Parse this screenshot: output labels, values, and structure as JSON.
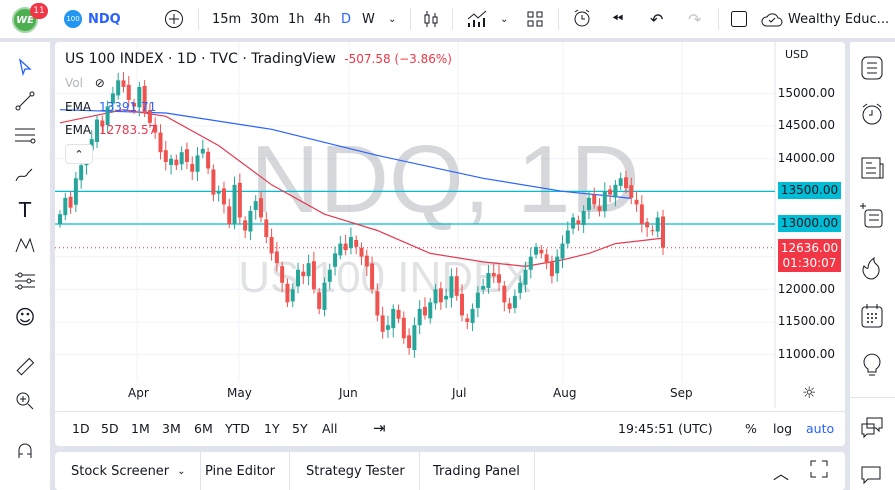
{
  "topbar": {
    "notification_count": "11",
    "symbol_badge": "100",
    "symbol": "NDQ",
    "intervals": [
      "15m",
      "30m",
      "1h",
      "4h",
      "D",
      "W"
    ],
    "active_interval": "D",
    "account": "Wealthy Educ..."
  },
  "legend": {
    "title": "US 100 INDEX · 1D · TVC · TradingView",
    "change": "-507.58 (−3.86%)",
    "vol_label": "Vol",
    "ema1_label": "EMA",
    "ema1_value": "13391.71",
    "ema2_label": "EMA",
    "ema2_value": "12783.57"
  },
  "watermark": {
    "symbol": "NDQ, 1D",
    "name": "US 100 INDEX"
  },
  "price_axis": {
    "currency": "USD",
    "ticks": [
      "15000.00",
      "14500.00",
      "14000.00",
      "12000.00",
      "11500.00",
      "11000.00"
    ],
    "levels": [
      "13500.00",
      "13000.00"
    ],
    "last_price": "12636.00",
    "countdown": "01:30:07"
  },
  "time_axis": {
    "months": [
      "Apr",
      "May",
      "Jun",
      "Jul",
      "Aug",
      "Sep"
    ]
  },
  "bottom_toolbar": {
    "periods": [
      "1D",
      "5D",
      "1M",
      "3M",
      "6M",
      "YTD",
      "1Y",
      "5Y",
      "All"
    ],
    "clock": "19:45:51 (UTC)",
    "percent": "%",
    "log": "log",
    "auto": "auto"
  },
  "bottom_panel": {
    "tabs": [
      "Stock Screener",
      "Pine Editor",
      "Strategy Tester",
      "Trading Panel"
    ]
  },
  "colors": {
    "up": "#26a69a",
    "down": "#ef5350",
    "ema_long": "#2962ff",
    "ema_short": "#e53950",
    "level_line": "#00bcd4",
    "accent": "#2962ff",
    "last_price_bg": "#f23645"
  },
  "chart_data": {
    "type": "candlestick",
    "horizontal_levels": [
      13500,
      13000
    ],
    "y_range": [
      10700,
      15600
    ],
    "closes": [
      13150,
      13400,
      13250,
      13700,
      13900,
      14100,
      14300,
      14600,
      14500,
      14800,
      15000,
      15200,
      15100,
      14900,
      14800,
      15100,
      14700,
      14550,
      14400,
      14100,
      13950,
      14000,
      13900,
      14100,
      13950,
      13800,
      14050,
      14150,
      13850,
      13450,
      13500,
      13300,
      13000,
      13600,
      13100,
      12900,
      13200,
      13350,
      13100,
      12800,
      12550,
      12400,
      12100,
      11800,
      12000,
      12300,
      12200,
      12400,
      12000,
      11700,
      12100,
      12300,
      12550,
      12700,
      12600,
      12800,
      12650,
      12500,
      12350,
      12000,
      11600,
      11350,
      11450,
      11700,
      11550,
      11250,
      11100,
      11450,
      11700,
      11600,
      11800,
      12000,
      11800,
      11900,
      12200,
      11900,
      11600,
      11500,
      11700,
      11950,
      12050,
      12250,
      12200,
      12100,
      11800,
      11700,
      11900,
      12100,
      12300,
      12500,
      12650,
      12550,
      12400,
      12200,
      12500,
      12700,
      12900,
      13100,
      13000,
      13200,
      13400,
      13300,
      13200,
      13500,
      13450,
      13600,
      13700,
      13550,
      13400,
      13300,
      13000,
      12950,
      12900,
      13100,
      12636
    ],
    "ema_long": {
      "at_candle": [
        0,
        20,
        40,
        60,
        80,
        95,
        105,
        108
      ],
      "values": [
        14750,
        14700,
        14450,
        14050,
        13700,
        13500,
        13420,
        13392
      ]
    },
    "ema_short": {
      "at_candle": [
        0,
        12,
        20,
        30,
        40,
        50,
        60,
        70,
        80,
        88,
        95,
        100,
        105,
        114
      ],
      "values": [
        14550,
        14750,
        14650,
        14200,
        13600,
        13150,
        12900,
        12550,
        12420,
        12350,
        12450,
        12550,
        12700,
        12784
      ]
    }
  }
}
